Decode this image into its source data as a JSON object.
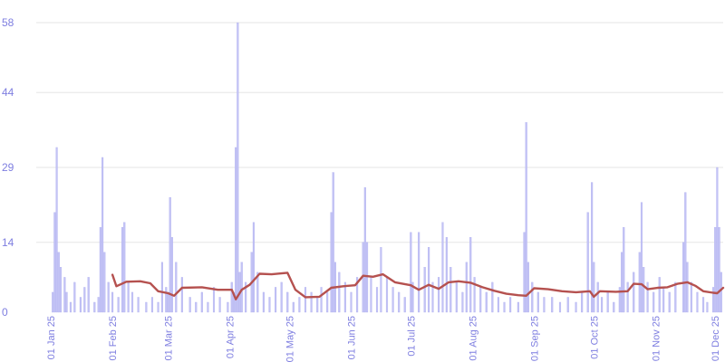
{
  "chart_data": {
    "type": "bar",
    "title": "",
    "xlabel": "",
    "ylabel": "",
    "ylim": [
      0,
      58
    ],
    "x_range": [
      "2025-01-01",
      "2025-12-05"
    ],
    "y_ticks": [
      "0",
      "14",
      "29",
      "44",
      "58"
    ],
    "x_ticks": [
      {
        "label": "01 Jan 25",
        "date": "2025-01-01"
      },
      {
        "label": "01 Feb 25",
        "date": "2025-02-01"
      },
      {
        "label": "01 Mar 25",
        "date": "2025-03-01"
      },
      {
        "label": "01 Apr 25",
        "date": "2025-04-01"
      },
      {
        "label": "01 May 25",
        "date": "2025-05-01"
      },
      {
        "label": "01 Jun 25",
        "date": "2025-06-01"
      },
      {
        "label": "01 Jul 25",
        "date": "2025-07-01"
      },
      {
        "label": "01 Aug 25",
        "date": "2025-08-01"
      },
      {
        "label": "01 Sep 25",
        "date": "2025-09-01"
      },
      {
        "label": "01 Oct 25",
        "date": "2025-10-01"
      },
      {
        "label": "01 Nov 25",
        "date": "2025-11-01"
      },
      {
        "label": "01 Dec 25",
        "date": "2025-12-01"
      }
    ],
    "grid": true,
    "colors": {
      "bars": "#c3c3f5",
      "bar_edge": "#a9a9ee",
      "line": "#b5514f",
      "tick_text": "#7e7ee0",
      "grid": "#e6e6e6"
    },
    "series": [
      {
        "type": "bar",
        "points": [
          [
            "2025-01-02",
            4
          ],
          [
            "2025-01-03",
            20
          ],
          [
            "2025-01-04",
            33
          ],
          [
            "2025-01-05",
            12
          ],
          [
            "2025-01-06",
            9
          ],
          [
            "2025-01-08",
            7
          ],
          [
            "2025-01-09",
            4
          ],
          [
            "2025-01-11",
            2
          ],
          [
            "2025-01-13",
            6
          ],
          [
            "2025-01-16",
            3
          ],
          [
            "2025-01-18",
            5
          ],
          [
            "2025-01-20",
            7
          ],
          [
            "2025-01-23",
            2
          ],
          [
            "2025-01-25",
            3
          ],
          [
            "2025-01-26",
            17
          ],
          [
            "2025-01-27",
            31
          ],
          [
            "2025-01-28",
            12
          ],
          [
            "2025-01-30",
            6
          ],
          [
            "2025-02-01",
            4
          ],
          [
            "2025-02-04",
            3
          ],
          [
            "2025-02-06",
            17
          ],
          [
            "2025-02-07",
            18
          ],
          [
            "2025-02-09",
            6
          ],
          [
            "2025-02-11",
            4
          ],
          [
            "2025-02-14",
            3
          ],
          [
            "2025-02-18",
            2
          ],
          [
            "2025-02-21",
            3
          ],
          [
            "2025-02-24",
            2
          ],
          [
            "2025-02-26",
            10
          ],
          [
            "2025-02-28",
            5
          ],
          [
            "2025-03-01",
            4
          ],
          [
            "2025-03-02",
            23
          ],
          [
            "2025-03-03",
            15
          ],
          [
            "2025-03-05",
            10
          ],
          [
            "2025-03-08",
            7
          ],
          [
            "2025-03-12",
            3
          ],
          [
            "2025-03-15",
            2
          ],
          [
            "2025-03-18",
            4
          ],
          [
            "2025-03-21",
            2
          ],
          [
            "2025-03-24",
            5
          ],
          [
            "2025-03-27",
            3
          ],
          [
            "2025-03-31",
            2
          ],
          [
            "2025-04-02",
            6
          ],
          [
            "2025-04-03",
            4
          ],
          [
            "2025-04-04",
            33
          ],
          [
            "2025-04-05",
            58
          ],
          [
            "2025-04-06",
            8
          ],
          [
            "2025-04-07",
            10
          ],
          [
            "2025-04-09",
            6
          ],
          [
            "2025-04-12",
            12
          ],
          [
            "2025-04-13",
            18
          ],
          [
            "2025-04-15",
            8
          ],
          [
            "2025-04-18",
            4
          ],
          [
            "2025-04-21",
            3
          ],
          [
            "2025-04-24",
            5
          ],
          [
            "2025-04-27",
            6
          ],
          [
            "2025-04-30",
            4
          ],
          [
            "2025-05-03",
            2
          ],
          [
            "2025-05-06",
            3
          ],
          [
            "2025-05-09",
            5
          ],
          [
            "2025-05-12",
            4
          ],
          [
            "2025-05-15",
            3
          ],
          [
            "2025-05-17",
            5
          ],
          [
            "2025-05-20",
            4
          ],
          [
            "2025-05-22",
            20
          ],
          [
            "2025-05-23",
            28
          ],
          [
            "2025-05-24",
            10
          ],
          [
            "2025-05-26",
            8
          ],
          [
            "2025-05-29",
            6
          ],
          [
            "2025-06-01",
            4
          ],
          [
            "2025-06-04",
            7
          ],
          [
            "2025-06-07",
            14
          ],
          [
            "2025-06-08",
            25
          ],
          [
            "2025-06-09",
            14
          ],
          [
            "2025-06-11",
            7
          ],
          [
            "2025-06-14",
            5
          ],
          [
            "2025-06-16",
            13
          ],
          [
            "2025-06-19",
            7
          ],
          [
            "2025-06-22",
            5
          ],
          [
            "2025-06-25",
            4
          ],
          [
            "2025-06-28",
            3
          ],
          [
            "2025-07-01",
            16
          ],
          [
            "2025-07-02",
            6
          ],
          [
            "2025-07-05",
            16
          ],
          [
            "2025-07-08",
            9
          ],
          [
            "2025-07-10",
            13
          ],
          [
            "2025-07-12",
            6
          ],
          [
            "2025-07-15",
            7
          ],
          [
            "2025-07-17",
            18
          ],
          [
            "2025-07-19",
            15
          ],
          [
            "2025-07-21",
            9
          ],
          [
            "2025-07-24",
            6
          ],
          [
            "2025-07-27",
            4
          ],
          [
            "2025-07-29",
            10
          ],
          [
            "2025-07-31",
            15
          ],
          [
            "2025-08-02",
            7
          ],
          [
            "2025-08-05",
            5
          ],
          [
            "2025-08-08",
            4
          ],
          [
            "2025-08-11",
            6
          ],
          [
            "2025-08-14",
            3
          ],
          [
            "2025-08-17",
            2
          ],
          [
            "2025-08-20",
            3
          ],
          [
            "2025-08-24",
            2
          ],
          [
            "2025-08-27",
            16
          ],
          [
            "2025-08-28",
            38
          ],
          [
            "2025-08-29",
            10
          ],
          [
            "2025-08-31",
            6
          ],
          [
            "2025-09-03",
            4
          ],
          [
            "2025-09-06",
            3
          ],
          [
            "2025-09-10",
            3
          ],
          [
            "2025-09-14",
            2
          ],
          [
            "2025-09-18",
            3
          ],
          [
            "2025-09-22",
            2
          ],
          [
            "2025-09-25",
            4
          ],
          [
            "2025-09-28",
            20
          ],
          [
            "2025-09-30",
            26
          ],
          [
            "2025-10-01",
            10
          ],
          [
            "2025-10-03",
            6
          ],
          [
            "2025-10-05",
            3
          ],
          [
            "2025-10-08",
            4
          ],
          [
            "2025-10-11",
            2
          ],
          [
            "2025-10-14",
            5
          ],
          [
            "2025-10-15",
            12
          ],
          [
            "2025-10-16",
            17
          ],
          [
            "2025-10-18",
            6
          ],
          [
            "2025-10-21",
            8
          ],
          [
            "2025-10-24",
            12
          ],
          [
            "2025-10-25",
            22
          ],
          [
            "2025-10-26",
            9
          ],
          [
            "2025-10-28",
            6
          ],
          [
            "2025-10-31",
            4
          ],
          [
            "2025-11-03",
            7
          ],
          [
            "2025-11-05",
            5
          ],
          [
            "2025-11-08",
            4
          ],
          [
            "2025-11-11",
            6
          ],
          [
            "2025-11-15",
            14
          ],
          [
            "2025-11-16",
            24
          ],
          [
            "2025-11-17",
            10
          ],
          [
            "2025-11-19",
            6
          ],
          [
            "2025-11-22",
            4
          ],
          [
            "2025-11-25",
            3
          ],
          [
            "2025-11-27",
            2
          ],
          [
            "2025-11-30",
            5
          ],
          [
            "2025-12-01",
            17
          ],
          [
            "2025-12-02",
            29
          ],
          [
            "2025-12-03",
            17
          ],
          [
            "2025-12-04",
            8
          ]
        ]
      },
      {
        "type": "line",
        "points": [
          [
            "2025-02-01",
            7.5
          ],
          [
            "2025-02-03",
            5.2
          ],
          [
            "2025-02-08",
            6.1
          ],
          [
            "2025-02-15",
            6.2
          ],
          [
            "2025-02-20",
            5.8
          ],
          [
            "2025-02-24",
            4.2
          ],
          [
            "2025-03-01",
            3.8
          ],
          [
            "2025-03-04",
            3.3
          ],
          [
            "2025-03-08",
            4.9
          ],
          [
            "2025-03-18",
            5.0
          ],
          [
            "2025-03-26",
            4.5
          ],
          [
            "2025-04-02",
            4.5
          ],
          [
            "2025-04-04",
            2.6
          ],
          [
            "2025-04-07",
            4.5
          ],
          [
            "2025-04-11",
            5.5
          ],
          [
            "2025-04-16",
            7.7
          ],
          [
            "2025-04-22",
            7.6
          ],
          [
            "2025-04-30",
            7.9
          ],
          [
            "2025-05-04",
            4.5
          ],
          [
            "2025-05-09",
            3.0
          ],
          [
            "2025-05-16",
            3.1
          ],
          [
            "2025-05-22",
            4.9
          ],
          [
            "2025-05-28",
            5.2
          ],
          [
            "2025-06-03",
            5.4
          ],
          [
            "2025-06-07",
            7.3
          ],
          [
            "2025-06-12",
            7.1
          ],
          [
            "2025-06-17",
            7.6
          ],
          [
            "2025-06-23",
            6.0
          ],
          [
            "2025-07-01",
            5.4
          ],
          [
            "2025-07-05",
            4.5
          ],
          [
            "2025-07-10",
            5.5
          ],
          [
            "2025-07-15",
            4.7
          ],
          [
            "2025-07-20",
            6.0
          ],
          [
            "2025-07-25",
            6.2
          ],
          [
            "2025-07-31",
            5.9
          ],
          [
            "2025-08-06",
            5.0
          ],
          [
            "2025-08-12",
            4.3
          ],
          [
            "2025-08-18",
            3.7
          ],
          [
            "2025-08-24",
            3.4
          ],
          [
            "2025-08-28",
            3.3
          ],
          [
            "2025-09-01",
            4.8
          ],
          [
            "2025-09-08",
            4.6
          ],
          [
            "2025-09-15",
            4.2
          ],
          [
            "2025-09-22",
            4.0
          ],
          [
            "2025-09-29",
            4.2
          ],
          [
            "2025-10-01",
            3.1
          ],
          [
            "2025-10-04",
            4.2
          ],
          [
            "2025-10-12",
            4.1
          ],
          [
            "2025-10-18",
            4.2
          ],
          [
            "2025-10-21",
            5.7
          ],
          [
            "2025-10-25",
            5.6
          ],
          [
            "2025-10-28",
            4.6
          ],
          [
            "2025-11-02",
            4.9
          ],
          [
            "2025-11-07",
            5.0
          ],
          [
            "2025-11-12",
            5.7
          ],
          [
            "2025-11-17",
            6.0
          ],
          [
            "2025-11-21",
            5.3
          ],
          [
            "2025-11-25",
            4.2
          ],
          [
            "2025-11-30",
            3.9
          ],
          [
            "2025-12-02",
            3.8
          ],
          [
            "2025-12-05",
            4.9
          ]
        ]
      }
    ]
  }
}
